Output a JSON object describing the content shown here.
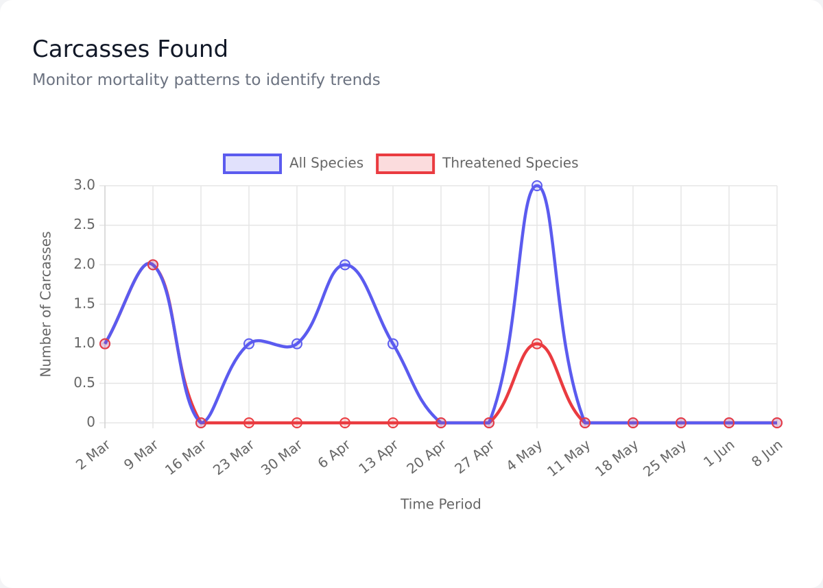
{
  "chart_data": {
    "type": "line",
    "title": "Carcasses Found",
    "subtitle": "Monitor mortality patterns to identify trends",
    "x_label": "Time Period",
    "y_label": "Number of Carcasses",
    "categories": [
      "2 Mar",
      "9 Mar",
      "16 Mar",
      "23 Mar",
      "30 Mar",
      "6 Apr",
      "13 Apr",
      "20 Apr",
      "27 Apr",
      "4 May",
      "11 May",
      "18 May",
      "25 May",
      "1 Jun",
      "8 Jun"
    ],
    "series": [
      {
        "name": "All Species",
        "color": "#5b5bef",
        "values": [
          1,
          2,
          0,
          1,
          1,
          2,
          1,
          0,
          0,
          3,
          0,
          0,
          0,
          0,
          0
        ]
      },
      {
        "name": "Threatened Species",
        "color": "#ea3b40",
        "values": [
          1,
          2,
          0,
          0,
          0,
          0,
          0,
          0,
          0,
          1,
          0,
          0,
          0,
          0,
          0
        ]
      }
    ],
    "ylim": [
      0,
      3
    ],
    "yticks": [
      0,
      0.5,
      {
        "value": 1,
        "label": "1.0"
      },
      1.5,
      {
        "value": 2,
        "label": "2.0"
      },
      2.5,
      {
        "value": 3,
        "label": "3.0"
      }
    ],
    "grid": true,
    "legend": "top"
  }
}
